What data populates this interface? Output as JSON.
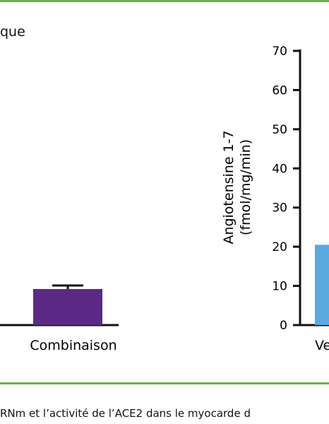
{
  "page": {
    "heading_fragment": "que",
    "caption_fragment": "RNm et l’activité de l’ACE2 dans le myocarde d",
    "rule_color": "#6ab04c"
  },
  "chart_data": [
    {
      "type": "bar",
      "categories": [
        "Combinaison"
      ],
      "values": [
        null
      ],
      "error_bar_visible": true,
      "colors": [
        "#5b2a86"
      ],
      "xlabel": "",
      "ylabel": "",
      "note": ""
    },
    {
      "type": "bar",
      "categories": [
        "Ve"
      ],
      "values": [
        20.5
      ],
      "colors": [
        "#5aa9e0"
      ],
      "ylabel_line1": "Angiotensine 1-7",
      "ylabel_line2": "(fmol/mg/min)",
      "ylim": [
        0,
        70
      ],
      "yticks": [
        0,
        10,
        20,
        30,
        40,
        50,
        60,
        70
      ],
      "grid": false,
      "legend": "none"
    }
  ]
}
